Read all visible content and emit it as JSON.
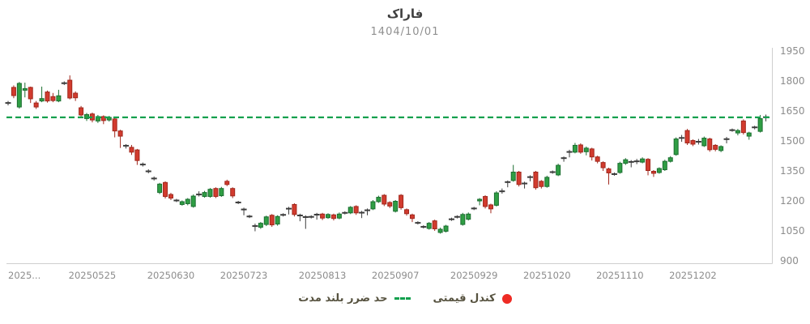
{
  "title": "فاراک",
  "subtitle": "1404/10/01",
  "legend": {
    "stop_loss_label": "حد ضرر بلند مدت",
    "candle_label": "کندل قیمتی"
  },
  "colors": {
    "up_fill": "#2f9e44",
    "up_border": "#1b6e30",
    "down_fill": "#d23b2e",
    "down_border": "#a0271c",
    "doji": "#3c3c3c",
    "stop_loss_line": "#12a04e",
    "legend_dot": "#ee2b24",
    "axis_line": "#cfcfcf",
    "tick_text": "#8c8c8c",
    "title_text": "#3f3f3f",
    "subtitle_text": "#8f8f8f"
  },
  "chart_data": {
    "type": "candlestick",
    "symbol": "فاراک",
    "date_shown": "1404/10/01",
    "legend_position": "bottom-center",
    "grid": false,
    "y_axis_side": "right",
    "ylim": [
      900,
      1950
    ],
    "y_ticks": [
      900,
      1050,
      1200,
      1350,
      1500,
      1650,
      1800,
      1950
    ],
    "stop_loss_value": 1618,
    "x_tick_labels": [
      "2025...",
      "20250525",
      "20250630",
      "20250723",
      "20250813",
      "20250907",
      "20250929",
      "20251020",
      "20251110",
      "20251202"
    ],
    "x_tick_indices": [
      2,
      15,
      29,
      42,
      56,
      69,
      83,
      96,
      109,
      122
    ],
    "candles_format": [
      "open",
      "high",
      "low",
      "close"
    ],
    "candles": [
      [
        1688,
        1700,
        1678,
        1692
      ],
      [
        1768,
        1778,
        1714,
        1727
      ],
      [
        1670,
        1795,
        1662,
        1788
      ],
      [
        1755,
        1792,
        1718,
        1762
      ],
      [
        1768,
        1772,
        1690,
        1711
      ],
      [
        1690,
        1700,
        1660,
        1670
      ],
      [
        1700,
        1772,
        1694,
        1712
      ],
      [
        1745,
        1752,
        1692,
        1700
      ],
      [
        1722,
        1740,
        1694,
        1702
      ],
      [
        1700,
        1756,
        1694,
        1726
      ],
      [
        1786,
        1798,
        1780,
        1792
      ],
      [
        1804,
        1828,
        1708,
        1715
      ],
      [
        1739,
        1748,
        1700,
        1716
      ],
      [
        1666,
        1675,
        1618,
        1630
      ],
      [
        1612,
        1640,
        1600,
        1632
      ],
      [
        1635,
        1642,
        1593,
        1605
      ],
      [
        1600,
        1630,
        1590,
        1622
      ],
      [
        1622,
        1628,
        1584,
        1602
      ],
      [
        1605,
        1625,
        1597,
        1618
      ],
      [
        1610,
        1615,
        1518,
        1550
      ],
      [
        1550,
        1556,
        1465,
        1524
      ],
      [
        1474,
        1484,
        1462,
        1478
      ],
      [
        1468,
        1480,
        1430,
        1444
      ],
      [
        1455,
        1460,
        1380,
        1402
      ],
      [
        1380,
        1392,
        1372,
        1384
      ],
      [
        1346,
        1358,
        1338,
        1350
      ],
      [
        1310,
        1322,
        1302,
        1314
      ],
      [
        1242,
        1290,
        1234,
        1284
      ],
      [
        1292,
        1298,
        1212,
        1222
      ],
      [
        1232,
        1240,
        1204,
        1214
      ],
      [
        1200,
        1210,
        1194,
        1204
      ],
      [
        1182,
        1202,
        1176,
        1196
      ],
      [
        1186,
        1214,
        1178,
        1208
      ],
      [
        1172,
        1232,
        1166,
        1224
      ],
      [
        1230,
        1248,
        1222,
        1234
      ],
      [
        1222,
        1250,
        1216,
        1242
      ],
      [
        1222,
        1264,
        1216,
        1258
      ],
      [
        1262,
        1268,
        1214,
        1222
      ],
      [
        1226,
        1270,
        1220,
        1262
      ],
      [
        1298,
        1306,
        1274,
        1282
      ],
      [
        1262,
        1268,
        1214,
        1225
      ],
      [
        1190,
        1200,
        1184,
        1194
      ],
      [
        1160,
        1166,
        1128,
        1154
      ],
      [
        1120,
        1130,
        1114,
        1124
      ],
      [
        1076,
        1086,
        1048,
        1072
      ],
      [
        1068,
        1094,
        1060,
        1088
      ],
      [
        1082,
        1126,
        1074,
        1120
      ],
      [
        1128,
        1134,
        1070,
        1080
      ],
      [
        1084,
        1128,
        1076,
        1122
      ],
      [
        1128,
        1138,
        1122,
        1132
      ],
      [
        1158,
        1170,
        1132,
        1164
      ],
      [
        1182,
        1188,
        1122,
        1132
      ],
      [
        1130,
        1136,
        1098,
        1124
      ],
      [
        1122,
        1128,
        1060,
        1116
      ],
      [
        1118,
        1128,
        1112,
        1122
      ],
      [
        1128,
        1140,
        1106,
        1134
      ],
      [
        1134,
        1140,
        1104,
        1114
      ],
      [
        1116,
        1138,
        1110,
        1132
      ],
      [
        1130,
        1136,
        1102,
        1112
      ],
      [
        1114,
        1142,
        1108,
        1134
      ],
      [
        1138,
        1148,
        1132,
        1142
      ],
      [
        1140,
        1174,
        1134,
        1168
      ],
      [
        1172,
        1178,
        1130,
        1140
      ],
      [
        1144,
        1150,
        1114,
        1138
      ],
      [
        1150,
        1162,
        1128,
        1156
      ],
      [
        1160,
        1204,
        1154,
        1196
      ],
      [
        1196,
        1226,
        1190,
        1218
      ],
      [
        1228,
        1234,
        1174,
        1184
      ],
      [
        1192,
        1198,
        1164,
        1174
      ],
      [
        1148,
        1204,
        1142,
        1198
      ],
      [
        1228,
        1234,
        1156,
        1166
      ],
      [
        1156,
        1162,
        1126,
        1136
      ],
      [
        1130,
        1136,
        1094,
        1112
      ],
      [
        1088,
        1098,
        1082,
        1092
      ],
      [
        1068,
        1078,
        1062,
        1072
      ],
      [
        1062,
        1094,
        1056,
        1088
      ],
      [
        1100,
        1106,
        1050,
        1060
      ],
      [
        1042,
        1066,
        1036,
        1058
      ],
      [
        1048,
        1080,
        1042,
        1074
      ],
      [
        1106,
        1116,
        1100,
        1110
      ],
      [
        1118,
        1128,
        1112,
        1122
      ],
      [
        1082,
        1140,
        1076,
        1132
      ],
      [
        1108,
        1142,
        1102,
        1134
      ],
      [
        1160,
        1170,
        1154,
        1164
      ],
      [
        1200,
        1214,
        1178,
        1208
      ],
      [
        1222,
        1228,
        1162,
        1172
      ],
      [
        1180,
        1186,
        1138,
        1160
      ],
      [
        1178,
        1248,
        1172,
        1240
      ],
      [
        1246,
        1262,
        1236,
        1250
      ],
      [
        1292,
        1302,
        1268,
        1296
      ],
      [
        1302,
        1380,
        1296,
        1344
      ],
      [
        1344,
        1350,
        1272,
        1282
      ],
      [
        1290,
        1296,
        1262,
        1284
      ],
      [
        1316,
        1328,
        1298,
        1322
      ],
      [
        1344,
        1350,
        1256,
        1266
      ],
      [
        1298,
        1304,
        1262,
        1272
      ],
      [
        1272,
        1326,
        1266,
        1318
      ],
      [
        1342,
        1352,
        1336,
        1346
      ],
      [
        1330,
        1386,
        1324,
        1378
      ],
      [
        1412,
        1422,
        1396,
        1416
      ],
      [
        1448,
        1456,
        1418,
        1442
      ],
      [
        1444,
        1490,
        1438,
        1478
      ],
      [
        1480,
        1488,
        1436,
        1444
      ],
      [
        1446,
        1472,
        1428,
        1464
      ],
      [
        1460,
        1466,
        1402,
        1420
      ],
      [
        1420,
        1426,
        1388,
        1398
      ],
      [
        1392,
        1398,
        1350,
        1366
      ],
      [
        1360,
        1366,
        1282,
        1340
      ],
      [
        1332,
        1342,
        1326,
        1336
      ],
      [
        1342,
        1396,
        1336,
        1388
      ],
      [
        1388,
        1414,
        1380,
        1406
      ],
      [
        1398,
        1404,
        1368,
        1392
      ],
      [
        1396,
        1410,
        1384,
        1400
      ],
      [
        1394,
        1418,
        1388,
        1410
      ],
      [
        1408,
        1414,
        1328,
        1352
      ],
      [
        1348,
        1354,
        1320,
        1338
      ],
      [
        1342,
        1368,
        1336,
        1362
      ],
      [
        1356,
        1406,
        1350,
        1398
      ],
      [
        1398,
        1424,
        1392,
        1416
      ],
      [
        1432,
        1518,
        1426,
        1510
      ],
      [
        1512,
        1530,
        1496,
        1518
      ],
      [
        1552,
        1560,
        1480,
        1490
      ],
      [
        1502,
        1508,
        1474,
        1484
      ],
      [
        1494,
        1510,
        1482,
        1498
      ],
      [
        1476,
        1522,
        1470,
        1514
      ],
      [
        1510,
        1516,
        1446,
        1456
      ],
      [
        1478,
        1484,
        1448,
        1458
      ],
      [
        1452,
        1478,
        1444,
        1472
      ],
      [
        1506,
        1520,
        1488,
        1512
      ],
      [
        1552,
        1562,
        1546,
        1556
      ],
      [
        1540,
        1560,
        1528,
        1552
      ],
      [
        1600,
        1608,
        1532,
        1542
      ],
      [
        1524,
        1546,
        1506,
        1540
      ],
      [
        1566,
        1576,
        1558,
        1570
      ],
      [
        1548,
        1630,
        1542,
        1612
      ],
      [
        1616,
        1632,
        1598,
        1622
      ]
    ]
  }
}
